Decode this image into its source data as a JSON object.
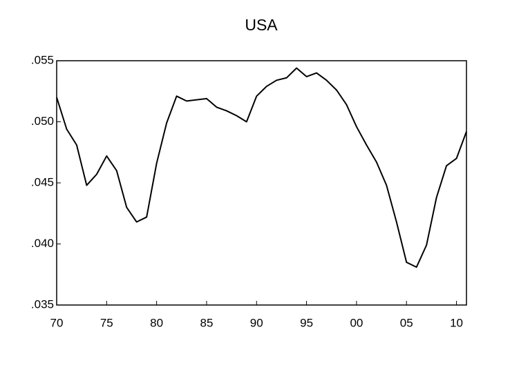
{
  "chart_data": {
    "type": "line",
    "title": "USA",
    "x": [
      1970,
      1971,
      1972,
      1973,
      1974,
      1975,
      1976,
      1977,
      1978,
      1979,
      1980,
      1981,
      1982,
      1983,
      1984,
      1985,
      1986,
      1987,
      1988,
      1989,
      1990,
      1991,
      1992,
      1993,
      1994,
      1995,
      1996,
      1997,
      1998,
      1999,
      2000,
      2001,
      2002,
      2003,
      2004,
      2005,
      2006,
      2007,
      2008,
      2009,
      2010,
      2011
    ],
    "values": [
      0.052,
      0.0494,
      0.0481,
      0.0448,
      0.0457,
      0.0472,
      0.046,
      0.043,
      0.0418,
      0.0422,
      0.0466,
      0.0499,
      0.0521,
      0.0517,
      0.0518,
      0.0519,
      0.0512,
      0.0509,
      0.0505,
      0.05,
      0.0521,
      0.0529,
      0.0534,
      0.0536,
      0.0544,
      0.0537,
      0.054,
      0.0534,
      0.0526,
      0.0514,
      0.0496,
      0.0481,
      0.0467,
      0.0448,
      0.0418,
      0.0385,
      0.0381,
      0.0399,
      0.0438,
      0.0464,
      0.047,
      0.0492
    ],
    "color": "#000000",
    "xlim": [
      1970,
      2011
    ],
    "xticks": [
      {
        "value": 1970,
        "label": "70"
      },
      {
        "value": 1975,
        "label": "75"
      },
      {
        "value": 1980,
        "label": "80"
      },
      {
        "value": 1985,
        "label": "85"
      },
      {
        "value": 1990,
        "label": "90"
      },
      {
        "value": 1995,
        "label": "95"
      },
      {
        "value": 2000,
        "label": "00"
      },
      {
        "value": 2005,
        "label": "05"
      },
      {
        "value": 2010,
        "label": "10"
      }
    ],
    "ylim": [
      0.035,
      0.055
    ],
    "yticks": [
      {
        "value": 0.035,
        "label": ".035"
      },
      {
        "value": 0.04,
        "label": ".040"
      },
      {
        "value": 0.045,
        "label": ".045"
      },
      {
        "value": 0.05,
        "label": ".050"
      },
      {
        "value": 0.055,
        "label": ".055"
      }
    ],
    "grid": false
  }
}
